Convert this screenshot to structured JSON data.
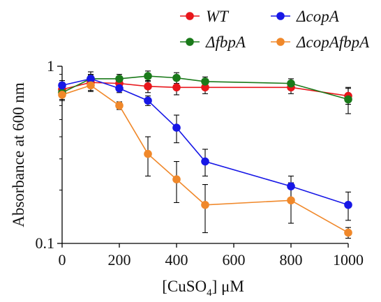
{
  "chart_data": {
    "type": "line",
    "title": "",
    "xlabel_main": "[CuSO",
    "xlabel_sub": "4",
    "xlabel_unit": "] μM",
    "ylabel": "Absorbance at 600 nm",
    "yscale": "log",
    "xlim": [
      0,
      1000
    ],
    "ylim": [
      0.1,
      1
    ],
    "x_ticks": [
      0,
      200,
      400,
      600,
      800,
      1000
    ],
    "x_tick_labels": [
      "0",
      "200",
      "400",
      "600",
      "800",
      "1000"
    ],
    "y_ticks": [
      0.1,
      1
    ],
    "y_tick_labels": [
      "0.1",
      "1"
    ],
    "legend_position": "top-right",
    "series": [
      {
        "name": "WT",
        "color": "#e8161b",
        "x": [
          0,
          100,
          200,
          300,
          400,
          500,
          800,
          1000
        ],
        "y": [
          0.74,
          0.81,
          0.8,
          0.77,
          0.76,
          0.76,
          0.76,
          0.68
        ],
        "err": [
          0.07,
          0.08,
          0.06,
          0.06,
          0.07,
          0.06,
          0.06,
          0.07
        ]
      },
      {
        "name": "ΔfbpA",
        "color": "#1a7a1a",
        "x": [
          0,
          100,
          200,
          300,
          400,
          500,
          800,
          1000
        ],
        "y": [
          0.71,
          0.85,
          0.85,
          0.88,
          0.86,
          0.82,
          0.8,
          0.65
        ],
        "err": [
          0.06,
          0.08,
          0.05,
          0.06,
          0.06,
          0.05,
          0.05,
          0.11
        ]
      },
      {
        "name": "ΔcopA",
        "color": "#1717e6",
        "x": [
          0,
          100,
          200,
          300,
          400,
          500,
          800,
          1000
        ],
        "y": [
          0.78,
          0.85,
          0.75,
          0.64,
          0.45,
          0.29,
          0.21,
          0.165
        ],
        "err": [
          0.05,
          0.05,
          0.04,
          0.04,
          0.08,
          0.05,
          0.03,
          0.03
        ]
      },
      {
        "name": "ΔcopAfbpA",
        "color": "#f0882a",
        "x": [
          0,
          100,
          200,
          300,
          400,
          500,
          800,
          1000
        ],
        "y": [
          0.69,
          0.78,
          0.6,
          0.32,
          0.23,
          0.165,
          0.175,
          0.115
        ],
        "err": [
          0.05,
          0.06,
          0.03,
          0.08,
          0.06,
          0.05,
          0.045,
          0.008
        ]
      }
    ]
  }
}
